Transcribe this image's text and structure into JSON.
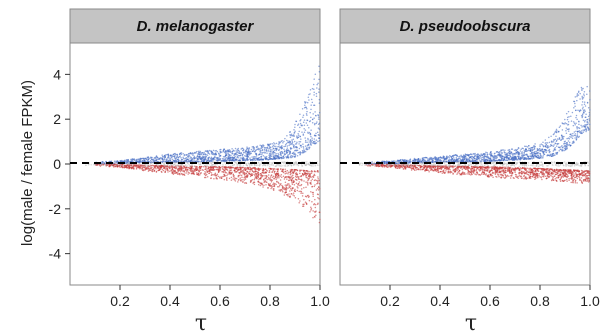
{
  "chart_data": [
    {
      "type": "scatter",
      "panel_title": "D. melanogaster",
      "xlabel": "τ",
      "ylabel": "log(male / female FPKM)",
      "xlim": [
        0,
        1.0
      ],
      "ylim": [
        -5.4,
        5.4
      ],
      "x_ticks": [
        "0.2",
        "0.4",
        "0.6",
        "0.8",
        "1.0"
      ],
      "y_ticks": [
        "-4",
        "-2",
        "0",
        "2",
        "4"
      ],
      "reference_line_y": 0,
      "series": [
        {
          "color": "#4a6fc4",
          "envelope": [
            [
              0.1,
              0.0,
              0.08
            ],
            [
              0.2,
              0.02,
              0.15
            ],
            [
              0.3,
              0.05,
              0.3
            ],
            [
              0.4,
              0.08,
              0.45
            ],
            [
              0.5,
              0.1,
              0.55
            ],
            [
              0.6,
              0.12,
              0.65
            ],
            [
              0.7,
              0.15,
              0.75
            ],
            [
              0.8,
              0.2,
              0.9
            ],
            [
              0.85,
              0.25,
              1.1
            ],
            [
              0.9,
              0.3,
              1.8
            ],
            [
              0.94,
              0.5,
              3.0
            ],
            [
              0.97,
              0.8,
              3.8
            ],
            [
              1.0,
              1.0,
              4.5
            ]
          ]
        },
        {
          "color": "#c43a3a",
          "envelope": [
            [
              0.1,
              -0.08,
              0.0
            ],
            [
              0.2,
              -0.15,
              -0.02
            ],
            [
              0.3,
              -0.3,
              -0.05
            ],
            [
              0.4,
              -0.45,
              -0.08
            ],
            [
              0.5,
              -0.55,
              -0.1
            ],
            [
              0.6,
              -0.7,
              -0.12
            ],
            [
              0.7,
              -0.85,
              -0.15
            ],
            [
              0.8,
              -1.1,
              -0.2
            ],
            [
              0.9,
              -1.6,
              -0.25
            ],
            [
              0.95,
              -2.1,
              -0.3
            ],
            [
              1.0,
              -2.8,
              -0.3
            ]
          ]
        },
        {
          "color": "#b8b8b8",
          "envelope": [
            [
              0.05,
              -0.06,
              0.06
            ],
            [
              0.3,
              -0.1,
              0.1
            ],
            [
              0.6,
              -0.1,
              0.1
            ],
            [
              1.0,
              -0.1,
              0.1
            ]
          ]
        }
      ]
    },
    {
      "type": "scatter",
      "panel_title": "D. pseudoobscura",
      "xlabel": "τ",
      "ylabel": "",
      "xlim": [
        0,
        1.0
      ],
      "ylim": [
        -5.4,
        5.4
      ],
      "x_ticks": [
        "0.2",
        "0.4",
        "0.6",
        "0.8",
        "1.0"
      ],
      "y_ticks": [],
      "reference_line_y": 0,
      "series": [
        {
          "color": "#4a6fc4",
          "envelope": [
            [
              0.1,
              0.0,
              0.08
            ],
            [
              0.2,
              0.02,
              0.15
            ],
            [
              0.3,
              0.05,
              0.25
            ],
            [
              0.4,
              0.08,
              0.35
            ],
            [
              0.5,
              0.1,
              0.45
            ],
            [
              0.6,
              0.12,
              0.55
            ],
            [
              0.7,
              0.18,
              0.7
            ],
            [
              0.8,
              0.25,
              0.95
            ],
            [
              0.85,
              0.35,
              1.3
            ],
            [
              0.9,
              0.6,
              2.1
            ],
            [
              0.94,
              1.0,
              3.0
            ],
            [
              0.97,
              1.4,
              3.5
            ],
            [
              1.0,
              1.5,
              3.7
            ]
          ]
        },
        {
          "color": "#c43a3a",
          "envelope": [
            [
              0.1,
              -0.08,
              0.0
            ],
            [
              0.2,
              -0.15,
              -0.02
            ],
            [
              0.3,
              -0.3,
              -0.05
            ],
            [
              0.4,
              -0.4,
              -0.08
            ],
            [
              0.5,
              -0.5,
              -0.1
            ],
            [
              0.6,
              -0.6,
              -0.12
            ],
            [
              0.7,
              -0.65,
              -0.15
            ],
            [
              0.8,
              -0.7,
              -0.2
            ],
            [
              0.9,
              -0.8,
              -0.25
            ],
            [
              1.0,
              -0.9,
              -0.3
            ]
          ]
        },
        {
          "color": "#b8b8b8",
          "envelope": [
            [
              0.05,
              -0.06,
              0.06
            ],
            [
              0.3,
              -0.1,
              0.1
            ],
            [
              0.6,
              -0.1,
              0.1
            ],
            [
              1.0,
              -0.1,
              0.1
            ]
          ]
        }
      ]
    }
  ]
}
